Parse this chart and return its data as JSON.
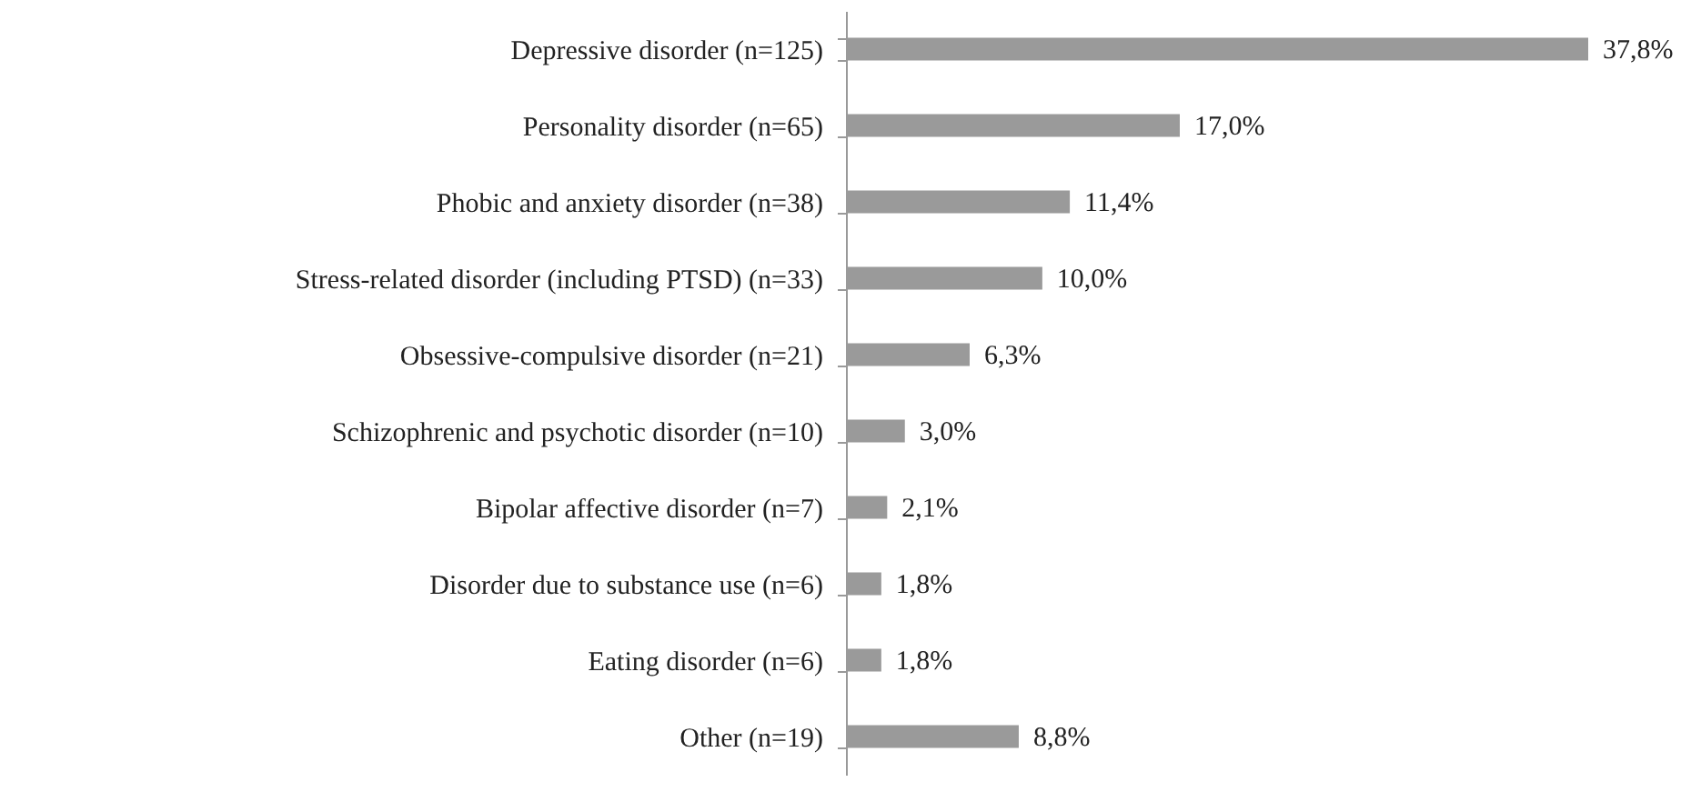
{
  "chart_data": {
    "type": "bar",
    "orientation": "horizontal",
    "categories": [
      "Depressive disorder (n=125)",
      "Personality disorder (n=65)",
      "Phobic and anxiety disorder (n=38)",
      "Stress-related disorder (including PTSD) (n=33)",
      "Obsessive-compulsive disorder (n=21)",
      "Schizophrenic and psychotic disorder (n=10)",
      "Bipolar affective disorder (n=7)",
      "Disorder due to substance use (n=6)",
      "Eating disorder (n=6)",
      "Other (n=19)"
    ],
    "values": [
      37.8,
      17.0,
      11.4,
      10.0,
      6.3,
      3.0,
      2.1,
      1.8,
      1.8,
      8.8
    ],
    "value_labels": [
      "37,8%",
      "17,0%",
      "11,4%",
      "10,0%",
      "6,3%",
      "3,0%",
      "2,1%",
      "1,8%",
      "1,8%",
      "8,8%"
    ],
    "color": "#9a9a9a"
  }
}
